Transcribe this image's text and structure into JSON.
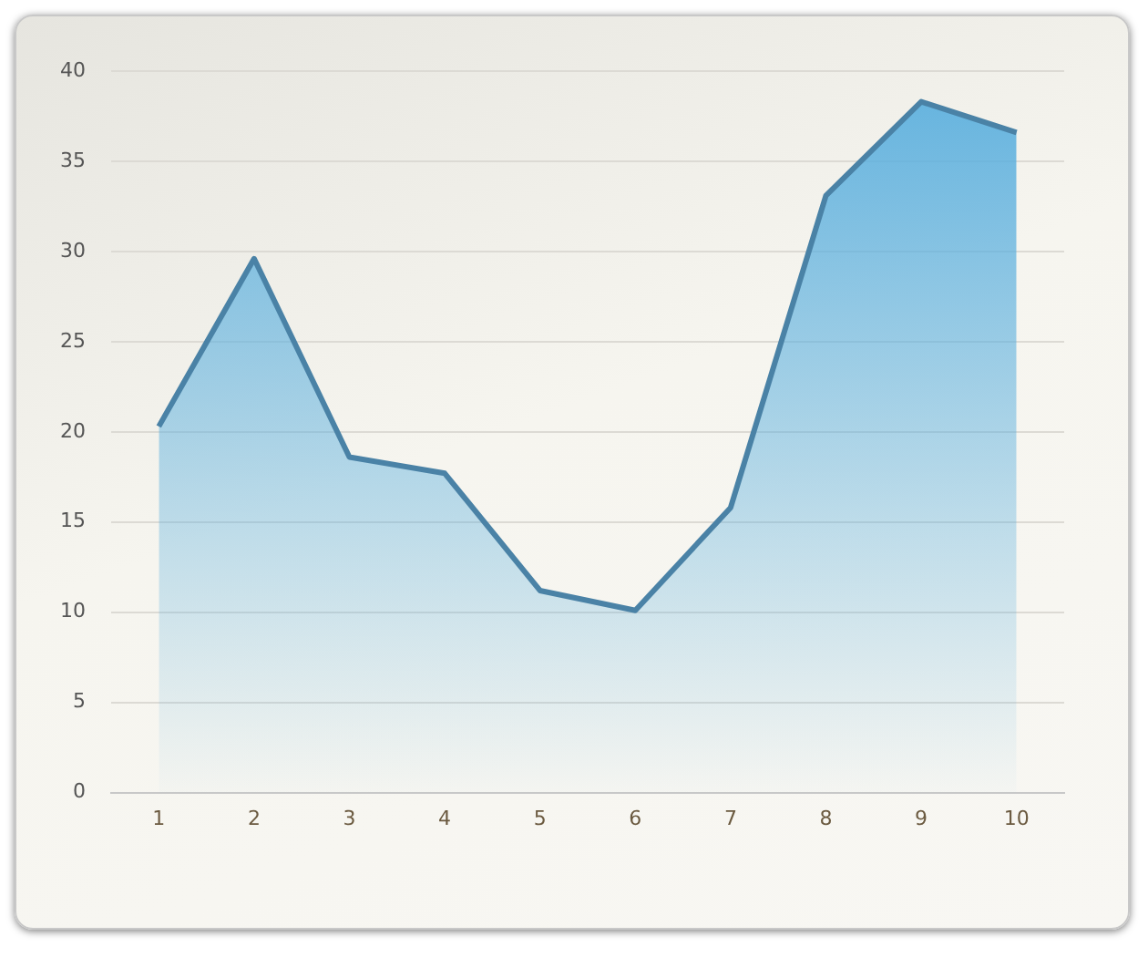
{
  "chart_data": {
    "type": "area",
    "categories": [
      "1",
      "2",
      "3",
      "4",
      "5",
      "6",
      "7",
      "8",
      "9",
      "10"
    ],
    "series": [
      {
        "color": "#4a82a6",
        "values": [
          20.3,
          29.6,
          18.6,
          17.7,
          11.2,
          10.1,
          15.8,
          33.1,
          38.3,
          36.6
        ]
      }
    ],
    "ylim": [
      0,
      40
    ],
    "yticks": [
      0,
      5,
      10,
      15,
      20,
      25,
      30,
      35,
      40
    ],
    "grid": "y",
    "legend": false,
    "marker": "none"
  }
}
